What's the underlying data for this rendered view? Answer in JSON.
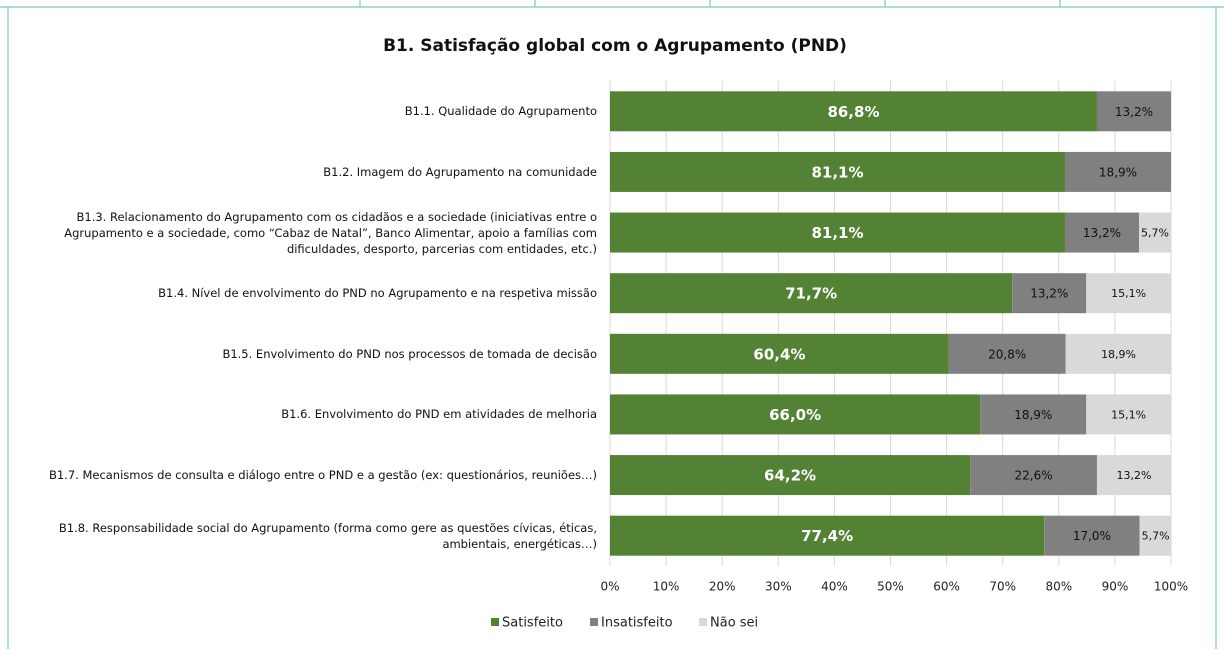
{
  "chart_data": {
    "type": "stacked-barh",
    "title": "B1. Satisfação global com o Agrupamento (PND)",
    "categories": [
      "B1.1. Qualidade do Agrupamento",
      "B1.2. Imagem do Agrupamento na comunidade",
      "B1.3. Relacionamento do Agrupamento com os cidadãos e a sociedade (iniciativas entre o Agrupamento e a sociedade, como “Cabaz de Natal”, Banco Alimentar, apoio a famílias com dificuldades, desporto, parcerias com entidades, etc.)",
      "B1.4. Nível de envolvimento do PND no Agrupamento e na respetiva missão",
      "B1.5. Envolvimento do PND nos processos de tomada de decisão",
      "B1.6. Envolvimento do PND em atividades de melhoria",
      "B1.7. Mecanismos de consulta e diálogo entre o PND e a gestão (ex: questionários, reuniões…)",
      "B1.8. Responsabilidade social do Agrupamento (forma como gere as questões cívicas, éticas, ambientais, energéticas…)"
    ],
    "series": [
      {
        "name": "Satisfeito",
        "color": "#548235",
        "values": [
          86.8,
          81.1,
          81.1,
          71.7,
          60.4,
          66.0,
          64.2,
          77.4
        ],
        "value_labels": [
          "86,8%",
          "81,1%",
          "81,1%",
          "71,7%",
          "60,4%",
          "66,0%",
          "64,2%",
          "77,4%"
        ]
      },
      {
        "name": "Insatisfeito",
        "color": "#808080",
        "values": [
          13.2,
          18.9,
          13.2,
          13.2,
          20.8,
          18.9,
          22.6,
          17.0
        ],
        "value_labels": [
          "13,2%",
          "18,9%",
          "13,2%",
          "13,2%",
          "20,8%",
          "18,9%",
          "22,6%",
          "17,0%"
        ]
      },
      {
        "name": "Não sei",
        "color": "#d9d9d9",
        "values": [
          null,
          null,
          5.7,
          15.1,
          18.9,
          15.1,
          13.2,
          5.7
        ],
        "value_labels": [
          null,
          null,
          "5,7%",
          "15,1%",
          "18,9%",
          "15,1%",
          "13,2%",
          "5,7%"
        ]
      }
    ],
    "xlim": [
      0,
      100
    ],
    "xticks": [
      {
        "value": 0,
        "label": "0%"
      },
      {
        "value": 10,
        "label": "10%"
      },
      {
        "value": 20,
        "label": "20%"
      },
      {
        "value": 30,
        "label": "30%"
      },
      {
        "value": 40,
        "label": "40%"
      },
      {
        "value": 50,
        "label": "50%"
      },
      {
        "value": 60,
        "label": "60%"
      },
      {
        "value": 70,
        "label": "70%"
      },
      {
        "value": 80,
        "label": "80%"
      },
      {
        "value": 90,
        "label": "90%"
      },
      {
        "value": 100,
        "label": "100%"
      }
    ],
    "grid": true,
    "legend": "bottom"
  }
}
